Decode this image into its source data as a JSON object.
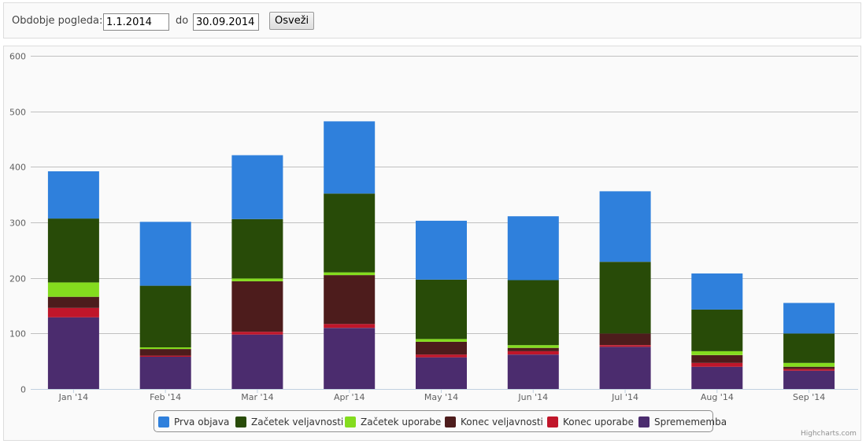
{
  "filter": {
    "label": "Obdobje pogleda:",
    "from_value": "1.1.2014",
    "to_label": "do",
    "to_value": "30.09.2014",
    "refresh_label": "Osveži"
  },
  "credits": "Highcharts.com",
  "chart_data": {
    "type": "bar",
    "stacked": true,
    "categories": [
      "Jan '14",
      "Feb '14",
      "Mar '14",
      "Apr '14",
      "May '14",
      "Jun '14",
      "Jul '14",
      "Aug '14",
      "Sep '14"
    ],
    "ylim": [
      0,
      600
    ],
    "yticks": [
      0,
      100,
      200,
      300,
      400,
      500,
      600
    ],
    "grid": true,
    "legend_position": "bottom-center",
    "series": [
      {
        "name": "Spremememba",
        "color": "#4b2c6e",
        "values": [
          129,
          58,
          98,
          110,
          57,
          62,
          76,
          40,
          33
        ]
      },
      {
        "name": "Konec uporabe",
        "color": "#c0162a",
        "values": [
          17,
          2,
          5,
          7,
          5,
          6,
          3,
          7,
          3
        ]
      },
      {
        "name": "Konec veljavnosti",
        "color": "#4d1c1c",
        "values": [
          20,
          12,
          91,
          88,
          23,
          6,
          21,
          14,
          4
        ]
      },
      {
        "name": "Začetek uporabe",
        "color": "#84dc1e",
        "values": [
          26,
          3,
          5,
          5,
          5,
          5,
          0,
          7,
          7
        ]
      },
      {
        "name": "Začetek veljavnosti",
        "color": "#284b08",
        "values": [
          115,
          111,
          107,
          142,
          107,
          117,
          129,
          75,
          53
        ]
      },
      {
        "name": "Prva objava",
        "color": "#2f80dc",
        "values": [
          85,
          115,
          115,
          130,
          106,
          115,
          127,
          65,
          55
        ]
      }
    ],
    "legend_order": [
      "Prva objava",
      "Začetek veljavnosti",
      "Začetek uporabe",
      "Konec veljavnosti",
      "Konec uporabe",
      "Spremememba"
    ]
  }
}
